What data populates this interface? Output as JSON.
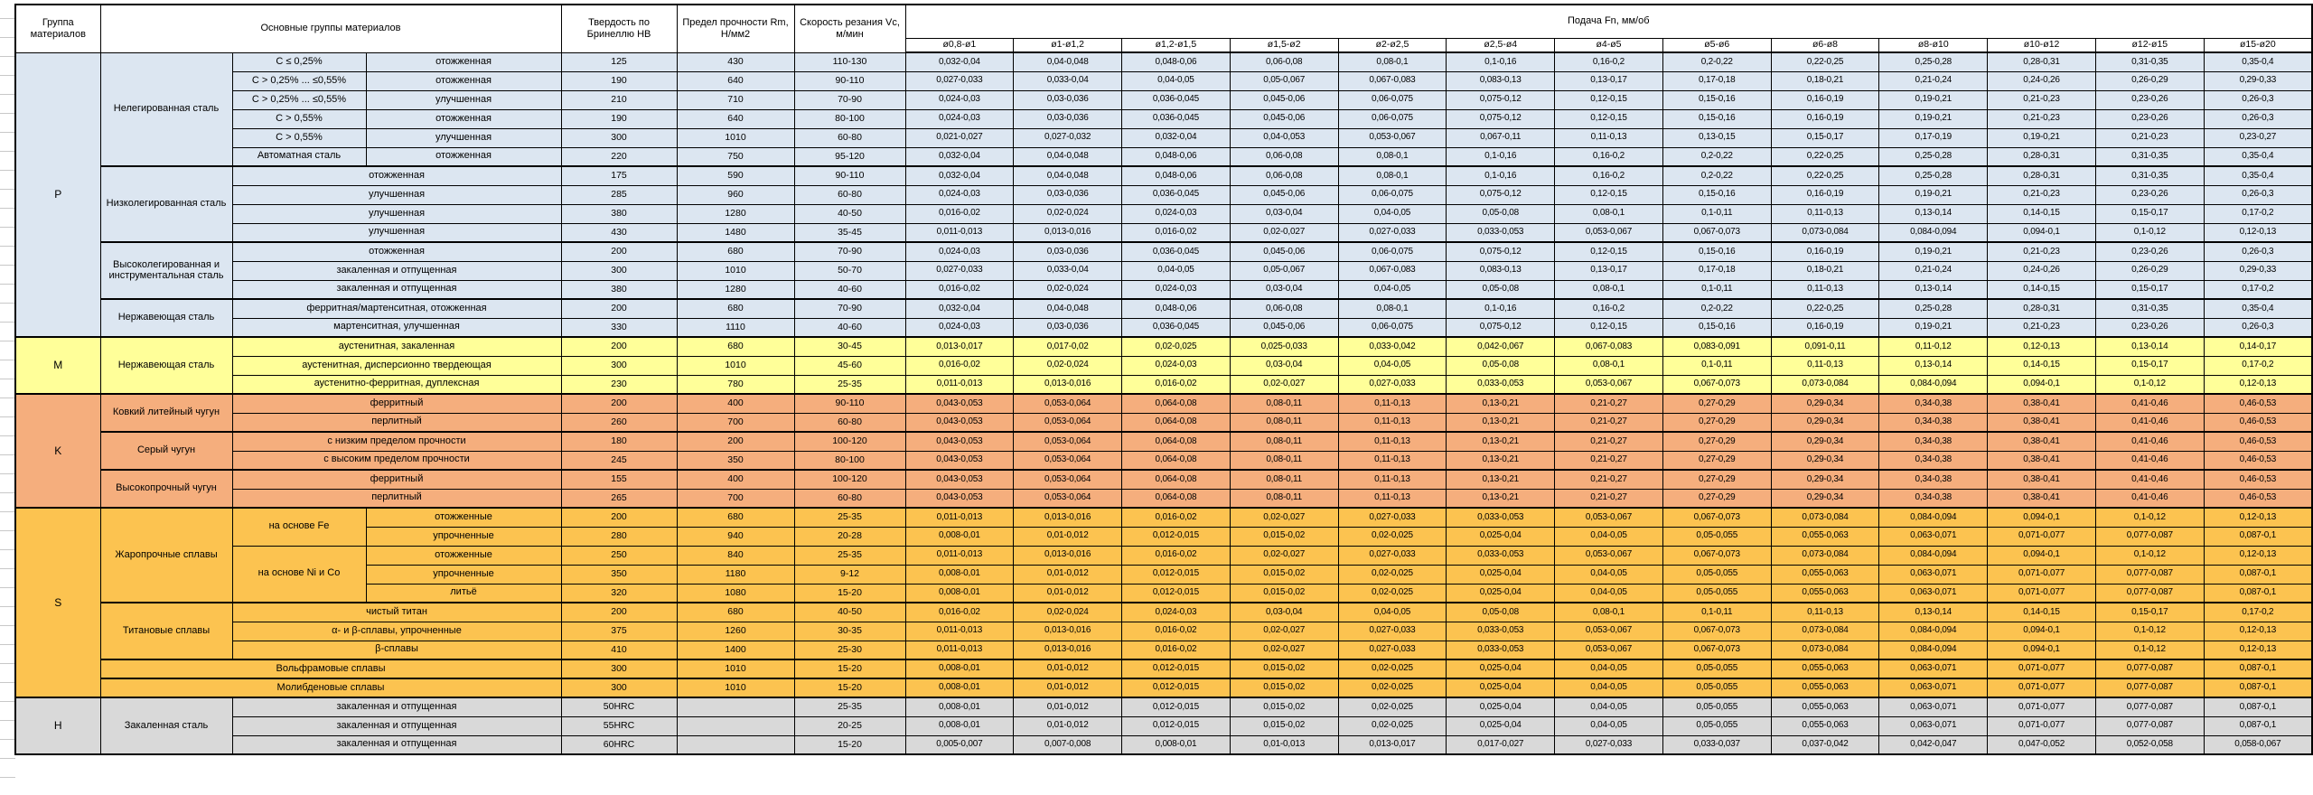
{
  "header": {
    "col_group": "Группа материалов",
    "col_materials": "Основные группы материалов",
    "col_hardness": "Твердость по Бринеллю HB",
    "col_strength": "Предел прочности Rm, Н/мм2",
    "col_speed": "Скорость резания Vc, м/мин",
    "col_feed": "Подача Fn, мм/об",
    "diameters": [
      "ø0,8-ø1",
      "ø1-ø1,2",
      "ø1,2-ø1,5",
      "ø1,5-ø2",
      "ø2-ø2,5",
      "ø2,5-ø4",
      "ø4-ø5",
      "ø5-ø6",
      "ø6-ø8",
      "ø8-ø10",
      "ø10-ø12",
      "ø12-ø15",
      "ø15-ø20"
    ]
  },
  "colors": {
    "P": "#DCE6F1",
    "M": "#FFFF99",
    "K": "#F5AE7D",
    "S": "#FCC350",
    "H": "#D9D9D9"
  },
  "feed_patterns": {
    "A": [
      "0,032-0,04",
      "0,04-0,048",
      "0,048-0,06",
      "0,06-0,08",
      "0,08-0,1",
      "0,1-0,16",
      "0,16-0,2",
      "0,2-0,22",
      "0,22-0,25",
      "0,25-0,28",
      "0,28-0,31",
      "0,31-0,35",
      "0,35-0,4"
    ],
    "B": [
      "0,027-0,033",
      "0,033-0,04",
      "0,04-0,05",
      "0,05-0,067",
      "0,067-0,083",
      "0,083-0,13",
      "0,13-0,17",
      "0,17-0,18",
      "0,18-0,21",
      "0,21-0,24",
      "0,24-0,26",
      "0,26-0,29",
      "0,29-0,33"
    ],
    "C": [
      "0,024-0,03",
      "0,03-0,036",
      "0,036-0,045",
      "0,045-0,06",
      "0,06-0,075",
      "0,075-0,12",
      "0,12-0,15",
      "0,15-0,16",
      "0,16-0,19",
      "0,19-0,21",
      "0,21-0,23",
      "0,23-0,26",
      "0,26-0,3"
    ],
    "D": [
      "0,021-0,027",
      "0,027-0,032",
      "0,032-0,04",
      "0,04-0,053",
      "0,053-0,067",
      "0,067-0,11",
      "0,11-0,13",
      "0,13-0,15",
      "0,15-0,17",
      "0,17-0,19",
      "0,19-0,21",
      "0,21-0,23",
      "0,23-0,27"
    ],
    "E": [
      "0,016-0,02",
      "0,02-0,024",
      "0,024-0,03",
      "0,03-0,04",
      "0,04-0,05",
      "0,05-0,08",
      "0,08-0,1",
      "0,1-0,11",
      "0,11-0,13",
      "0,13-0,14",
      "0,14-0,15",
      "0,15-0,17",
      "0,17-0,2"
    ],
    "F": [
      "0,011-0,013",
      "0,013-0,016",
      "0,016-0,02",
      "0,02-0,027",
      "0,027-0,033",
      "0,033-0,053",
      "0,053-0,067",
      "0,067-0,073",
      "0,073-0,084",
      "0,084-0,094",
      "0,094-0,1",
      "0,1-0,12",
      "0,12-0,13"
    ],
    "G": [
      "0,013-0,017",
      "0,017-0,02",
      "0,02-0,025",
      "0,025-0,033",
      "0,033-0,042",
      "0,042-0,067",
      "0,067-0,083",
      "0,083-0,091",
      "0,091-0,11",
      "0,11-0,12",
      "0,12-0,13",
      "0,13-0,14",
      "0,14-0,17"
    ],
    "H": [
      "0,043-0,053",
      "0,053-0,064",
      "0,064-0,08",
      "0,08-0,11",
      "0,11-0,13",
      "0,13-0,21",
      "0,21-0,27",
      "0,27-0,29",
      "0,29-0,34",
      "0,34-0,38",
      "0,38-0,41",
      "0,41-0,46",
      "0,46-0,53"
    ],
    "I": [
      "0,008-0,01",
      "0,01-0,012",
      "0,012-0,015",
      "0,015-0,02",
      "0,02-0,025",
      "0,025-0,04",
      "0,04-0,05",
      "0,05-0,055",
      "0,055-0,063",
      "0,063-0,071",
      "0,071-0,077",
      "0,077-0,087",
      "0,087-0,1"
    ],
    "J": [
      "0,005-0,007",
      "0,007-0,008",
      "0,008-0,01",
      "0,01-0,013",
      "0,013-0,017",
      "0,017-0,027",
      "0,027-0,033",
      "0,033-0,037",
      "0,037-0,042",
      "0,042-0,047",
      "0,047-0,052",
      "0,052-0,058",
      "0,058-0,067"
    ]
  },
  "rows": [
    {
      "g": "P",
      "cells": [
        {
          "t": "P",
          "rs": 15,
          "grp": true
        },
        {
          "t": "Нелегированная сталь",
          "rs": 6
        },
        {
          "t": "C ≤ 0,25%"
        },
        {
          "t": "отожженная"
        }
      ],
      "hb": "125",
      "rm": "430",
      "vc": "110-130",
      "feeds": "A"
    },
    {
      "g": "P",
      "cells": [
        {
          "t": "C > 0,25% ... ≤0,55%"
        },
        {
          "t": "отожженная"
        }
      ],
      "hb": "190",
      "rm": "640",
      "vc": "90-110",
      "feeds": "B"
    },
    {
      "g": "P",
      "cells": [
        {
          "t": "C > 0,25% ... ≤0,55%"
        },
        {
          "t": "улучшенная"
        }
      ],
      "hb": "210",
      "rm": "710",
      "vc": "70-90",
      "feeds": "C"
    },
    {
      "g": "P",
      "cells": [
        {
          "t": "C > 0,55%"
        },
        {
          "t": "отожженная"
        }
      ],
      "hb": "190",
      "rm": "640",
      "vc": "80-100",
      "feeds": "C"
    },
    {
      "g": "P",
      "cells": [
        {
          "t": "C > 0,55%"
        },
        {
          "t": "улучшенная"
        }
      ],
      "hb": "300",
      "rm": "1010",
      "vc": "60-80",
      "feeds": "D"
    },
    {
      "g": "P",
      "cells": [
        {
          "t": "Автоматная сталь"
        },
        {
          "t": "отожженная"
        }
      ],
      "hb": "220",
      "rm": "750",
      "vc": "95-120",
      "feeds": "A"
    },
    {
      "g": "P",
      "bt": true,
      "cells": [
        {
          "t": "Низколегированная сталь",
          "rs": 4
        },
        {
          "t": "отожженная",
          "cs": 2
        }
      ],
      "hb": "175",
      "rm": "590",
      "vc": "90-110",
      "feeds": "A"
    },
    {
      "g": "P",
      "cells": [
        {
          "t": "улучшенная",
          "cs": 2
        }
      ],
      "hb": "285",
      "rm": "960",
      "vc": "60-80",
      "feeds": "C"
    },
    {
      "g": "P",
      "cells": [
        {
          "t": "улучшенная",
          "cs": 2
        }
      ],
      "hb": "380",
      "rm": "1280",
      "vc": "40-50",
      "feeds": "E"
    },
    {
      "g": "P",
      "cells": [
        {
          "t": "улучшенная",
          "cs": 2
        }
      ],
      "hb": "430",
      "rm": "1480",
      "vc": "35-45",
      "feeds": "F"
    },
    {
      "g": "P",
      "bt": true,
      "cells": [
        {
          "t": "Высоколегированная и инструментальная сталь",
          "rs": 3
        },
        {
          "t": "отожженная",
          "cs": 2
        }
      ],
      "hb": "200",
      "rm": "680",
      "vc": "70-90",
      "feeds": "C"
    },
    {
      "g": "P",
      "cells": [
        {
          "t": "закаленная и отпущенная",
          "cs": 2
        }
      ],
      "hb": "300",
      "rm": "1010",
      "vc": "50-70",
      "feeds": "B"
    },
    {
      "g": "P",
      "cells": [
        {
          "t": "закаленная и отпущенная",
          "cs": 2
        }
      ],
      "hb": "380",
      "rm": "1280",
      "vc": "40-60",
      "feeds": "E"
    },
    {
      "g": "P",
      "bt": true,
      "cells": [
        {
          "t": "Нержавеющая сталь",
          "rs": 2
        },
        {
          "t": "ферритная/мартенситная, отожженная",
          "cs": 2
        }
      ],
      "hb": "200",
      "rm": "680",
      "vc": "70-90",
      "feeds": "A"
    },
    {
      "g": "P",
      "cells": [
        {
          "t": "мартенситная, улучшенная",
          "cs": 2
        }
      ],
      "hb": "330",
      "rm": "1110",
      "vc": "40-60",
      "feeds": "C"
    },
    {
      "g": "M",
      "bt": true,
      "cells": [
        {
          "t": "M",
          "rs": 3,
          "grp": true
        },
        {
          "t": "Нержавеющая сталь",
          "rs": 3
        },
        {
          "t": "аустенитная, закаленная",
          "cs": 2
        }
      ],
      "hb": "200",
      "rm": "680",
      "vc": "30-45",
      "feeds": "G"
    },
    {
      "g": "M",
      "cells": [
        {
          "t": "аустенитная, дисперсионно твердеющая",
          "cs": 2
        }
      ],
      "hb": "300",
      "rm": "1010",
      "vc": "45-60",
      "feeds": "E"
    },
    {
      "g": "M",
      "cells": [
        {
          "t": "аустенитно-ферритная, дуплексная",
          "cs": 2
        }
      ],
      "hb": "230",
      "rm": "780",
      "vc": "25-35",
      "feeds": "F"
    },
    {
      "g": "K",
      "bt": true,
      "cells": [
        {
          "t": "K",
          "rs": 6,
          "grp": true
        },
        {
          "t": "Ковкий литейный чугун",
          "rs": 2
        },
        {
          "t": "ферритный",
          "cs": 2
        }
      ],
      "hb": "200",
      "rm": "400",
      "vc": "90-110",
      "feeds": "H"
    },
    {
      "g": "K",
      "cells": [
        {
          "t": "перлитный",
          "cs": 2
        }
      ],
      "hb": "260",
      "rm": "700",
      "vc": "60-80",
      "feeds": "H"
    },
    {
      "g": "K",
      "bt": true,
      "cells": [
        {
          "t": "Серый чугун",
          "rs": 2
        },
        {
          "t": "с низким пределом прочности",
          "cs": 2
        }
      ],
      "hb": "180",
      "rm": "200",
      "vc": "100-120",
      "feeds": "H"
    },
    {
      "g": "K",
      "cells": [
        {
          "t": "с высоким пределом прочности",
          "cs": 2
        }
      ],
      "hb": "245",
      "rm": "350",
      "vc": "80-100",
      "feeds": "H"
    },
    {
      "g": "K",
      "bt": true,
      "cells": [
        {
          "t": "Высокопрочный чугун",
          "rs": 2
        },
        {
          "t": "ферритный",
          "cs": 2
        }
      ],
      "hb": "155",
      "rm": "400",
      "vc": "100-120",
      "feeds": "H"
    },
    {
      "g": "K",
      "cells": [
        {
          "t": "перлитный",
          "cs": 2
        }
      ],
      "hb": "265",
      "rm": "700",
      "vc": "60-80",
      "feeds": "H"
    },
    {
      "g": "S",
      "bt": true,
      "cells": [
        {
          "t": "S",
          "rs": 10,
          "grp": true
        },
        {
          "t": "Жаропрочные сплавы",
          "rs": 5
        },
        {
          "t": "на основе Fe",
          "rs": 2
        },
        {
          "t": "отожженные"
        }
      ],
      "hb": "200",
      "rm": "680",
      "vc": "25-35",
      "feeds": "F"
    },
    {
      "g": "S",
      "cells": [
        {
          "t": "упрочненные"
        }
      ],
      "hb": "280",
      "rm": "940",
      "vc": "20-28",
      "feeds": "I"
    },
    {
      "g": "S",
      "cells": [
        {
          "t": "на основе Ni и Co",
          "rs": 3
        },
        {
          "t": "отожженные"
        }
      ],
      "hb": "250",
      "rm": "840",
      "vc": "25-35",
      "feeds": "F"
    },
    {
      "g": "S",
      "cells": [
        {
          "t": "упрочненные"
        }
      ],
      "hb": "350",
      "rm": "1180",
      "vc": "9-12",
      "feeds": "I"
    },
    {
      "g": "S",
      "cells": [
        {
          "t": "литьё"
        }
      ],
      "hb": "320",
      "rm": "1080",
      "vc": "15-20",
      "feeds": "I"
    },
    {
      "g": "S",
      "bt": true,
      "cells": [
        {
          "t": "Титановые сплавы",
          "rs": 3
        },
        {
          "t": "чистый титан",
          "cs": 2
        }
      ],
      "hb": "200",
      "rm": "680",
      "vc": "40-50",
      "feeds": "E"
    },
    {
      "g": "S",
      "cells": [
        {
          "t": "α- и β-сплавы, упрочненные",
          "cs": 2
        }
      ],
      "hb": "375",
      "rm": "1260",
      "vc": "30-35",
      "feeds": "F"
    },
    {
      "g": "S",
      "cells": [
        {
          "t": "β-сплавы",
          "cs": 2
        }
      ],
      "hb": "410",
      "rm": "1400",
      "vc": "25-30",
      "feeds": "F"
    },
    {
      "g": "S",
      "bt": true,
      "cells": [
        {
          "t": "Вольфрамовые сплавы",
          "cs": 3
        }
      ],
      "hb": "300",
      "rm": "1010",
      "vc": "15-20",
      "feeds": "I"
    },
    {
      "g": "S",
      "bt": true,
      "cells": [
        {
          "t": "Молибденовые сплавы",
          "cs": 3
        }
      ],
      "hb": "300",
      "rm": "1010",
      "vc": "15-20",
      "feeds": "I"
    },
    {
      "g": "H",
      "bt": true,
      "cells": [
        {
          "t": "H",
          "rs": 3,
          "grp": true
        },
        {
          "t": "Закаленная сталь",
          "rs": 3
        },
        {
          "t": "закаленная и отпущенная",
          "cs": 2
        }
      ],
      "hb": "50HRC",
      "rm": "",
      "vc": "25-35",
      "feeds": "I"
    },
    {
      "g": "H",
      "cells": [
        {
          "t": "закаленная и отпущенная",
          "cs": 2
        }
      ],
      "hb": "55HRC",
      "rm": "",
      "vc": "20-25",
      "feeds": "I"
    },
    {
      "g": "H",
      "cells": [
        {
          "t": "закаленная и отпущенная",
          "cs": 2
        }
      ],
      "hb": "60HRC",
      "rm": "",
      "vc": "15-20",
      "feeds": "J"
    }
  ]
}
